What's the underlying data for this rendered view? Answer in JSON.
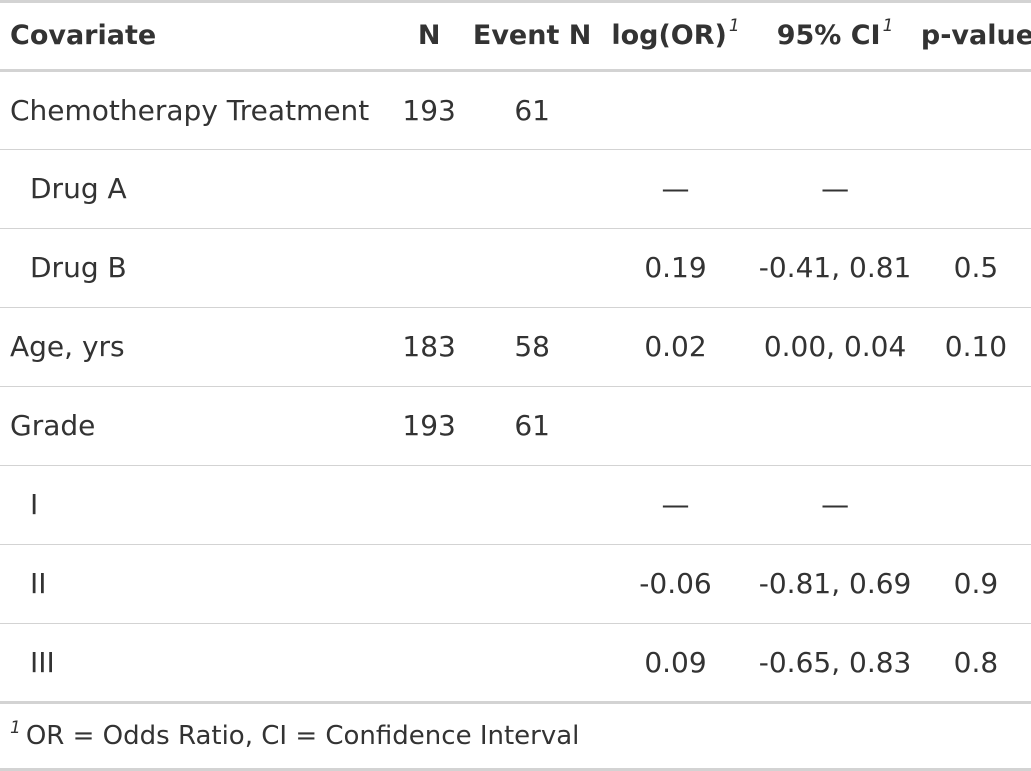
{
  "table": {
    "headers": {
      "covariate": "Covariate",
      "n": "N",
      "event_n": "Event N",
      "log_or": "log(OR)",
      "log_or_mark": "1",
      "ci": "95% CI",
      "ci_mark": "1",
      "p_value": "p-value"
    },
    "rows": [
      {
        "label": "Chemotherapy Treatment",
        "n": "193",
        "event_n": "61",
        "log_or": "",
        "ci": "",
        "p": ""
      },
      {
        "label": "Drug A",
        "n": "",
        "event_n": "",
        "log_or": "—",
        "ci": "—",
        "p": ""
      },
      {
        "label": "Drug B",
        "n": "",
        "event_n": "",
        "log_or": "0.19",
        "ci": "-0.41, 0.81",
        "p": "0.5"
      },
      {
        "label": "Age, yrs",
        "n": "183",
        "event_n": "58",
        "log_or": "0.02",
        "ci": "0.00, 0.04",
        "p": "0.10"
      },
      {
        "label": "Grade",
        "n": "193",
        "event_n": "61",
        "log_or": "",
        "ci": "",
        "p": ""
      },
      {
        "label": "I",
        "n": "",
        "event_n": "",
        "log_or": "—",
        "ci": "—",
        "p": ""
      },
      {
        "label": "II",
        "n": "",
        "event_n": "",
        "log_or": "-0.06",
        "ci": "-0.81, 0.69",
        "p": "0.9"
      },
      {
        "label": "III",
        "n": "",
        "event_n": "",
        "log_or": "0.09",
        "ci": "-0.65, 0.83",
        "p": "0.8"
      }
    ]
  },
  "footnote": {
    "mark": "1",
    "text": "OR = Odds Ratio, CI = Confidence Interval"
  }
}
